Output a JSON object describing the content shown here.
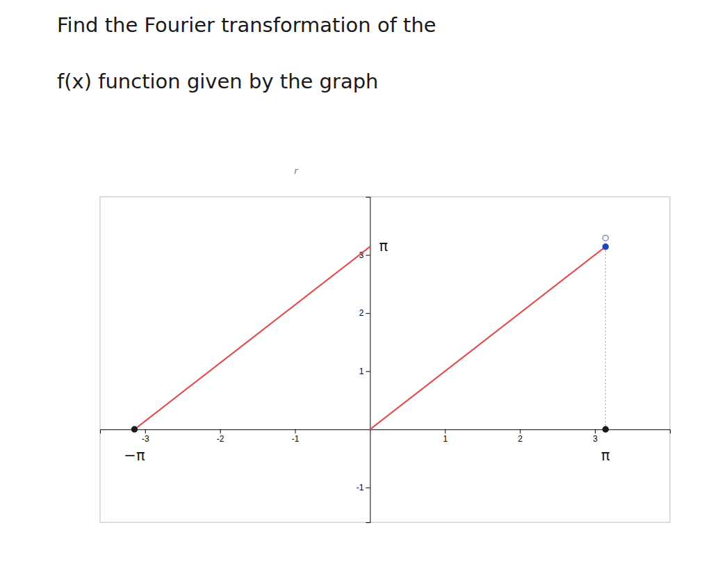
{
  "chart_data": {
    "type": "line",
    "title": [
      "Find the Fourier transformation of the",
      "f(x) function given by the graph"
    ],
    "xlim": [
      -3.6,
      4.0
    ],
    "ylim": [
      -1.6,
      4.0
    ],
    "xticks": [
      -3,
      -2,
      -1,
      1,
      2,
      3
    ],
    "yticks": [
      -1,
      1,
      2,
      3
    ],
    "grid": false,
    "series": [
      {
        "type": "line",
        "color": "#e05050",
        "x": [
          -3.14159265358979,
          0
        ],
        "values": [
          0,
          3.14159265358979
        ]
      },
      {
        "type": "line",
        "color": "#e05050",
        "x": [
          0,
          3.14159265358979
        ],
        "values": [
          0,
          3.14159265358979
        ]
      },
      {
        "type": "line",
        "line_style": "dotted",
        "color": "#aaaaaa",
        "x": [
          3.14159265358979,
          3.14159265358979
        ],
        "values": [
          0,
          3.14159265358979
        ]
      },
      {
        "type": "scatter",
        "marker": "circle",
        "color": "#1a1a1a",
        "x": [
          -3.14159265358979
        ],
        "values": [
          0
        ]
      },
      {
        "type": "scatter",
        "marker": "circle",
        "color": "#2244bb",
        "x": [
          3.14159265358979
        ],
        "values": [
          3.14159265358979
        ]
      },
      {
        "type": "scatter",
        "marker": "circle",
        "color": "#1a1a1a",
        "x": [
          3.14159265358979
        ],
        "values": [
          0
        ]
      },
      {
        "type": "scatter",
        "marker": "open_circle",
        "color": "#8888bb",
        "x": [
          3.14159265358979
        ],
        "values": [
          3.29159265358979
        ]
      }
    ],
    "annotations": [
      {
        "text": "r"
      },
      {
        "text": "π",
        "y": 3.14159265358979
      },
      {
        "text": "−π",
        "x": -3.14159265358979
      },
      {
        "text": "π",
        "x": 3.14159265358979
      }
    ]
  }
}
